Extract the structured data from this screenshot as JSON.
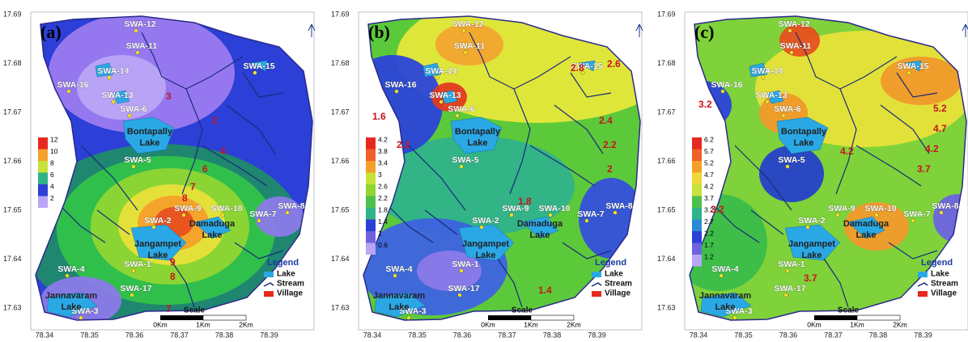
{
  "y_ticks": [
    "17.69",
    "17.68",
    "17.67",
    "17.66",
    "17.65",
    "17.64",
    "17.63"
  ],
  "x_ticks": [
    "78.34",
    "78.35",
    "78.36",
    "78.37",
    "78.38",
    "78.39"
  ],
  "wells": [
    "SWA-12",
    "SWA-11",
    "SWA-14",
    "SWA-16",
    "SWA-13",
    "SWA-6",
    "SWA-15",
    "SWA-5",
    "SWA-9",
    "SWA-10",
    "SWA-7",
    "SWA-8",
    "SWA-2",
    "SWA-1",
    "SWA-4",
    "SWA-17",
    "SWA-3"
  ],
  "lakes": [
    [
      "Bontapally",
      "Lake"
    ],
    [
      "Jangampet",
      "Lake"
    ],
    [
      "Damaduga",
      "Lake"
    ],
    [
      "Jannavaram",
      "Lake"
    ]
  ],
  "legend": {
    "title": "Legend",
    "items": [
      "Lake",
      "Stream",
      "Village"
    ]
  },
  "scale": {
    "title": "Scale",
    "ticks": [
      "0Km",
      "1Km",
      "2Km"
    ]
  },
  "panels": [
    {
      "label": "(a)",
      "colorbar": [
        "12",
        "10",
        "8",
        "6",
        "4",
        "2"
      ],
      "contour_labels": [
        "3",
        "2",
        "4",
        "6",
        "7",
        "8",
        "9",
        "8",
        "7"
      ]
    },
    {
      "label": "(b)",
      "colorbar": [
        "4.2",
        "3.8",
        "3.4",
        "3",
        "2.6",
        "2.2",
        "1.8",
        "1.4",
        "1",
        "0.6"
      ],
      "contour_labels": [
        "2.8",
        "2.6",
        "2.4",
        "2.2",
        "2",
        "1.6",
        "2.2",
        "1.8",
        "1.4"
      ]
    },
    {
      "label": "(c)",
      "colorbar": [
        "6.2",
        "5.7",
        "5.2",
        "4.7",
        "4.2",
        "3.7",
        "3.2",
        "2.7",
        "2.2",
        "1.7",
        "1.2"
      ],
      "contour_labels": [
        "5.2",
        "4.7",
        "4.2",
        "4.2",
        "3.7",
        "3.2",
        "3.2",
        "3.7"
      ]
    }
  ]
}
